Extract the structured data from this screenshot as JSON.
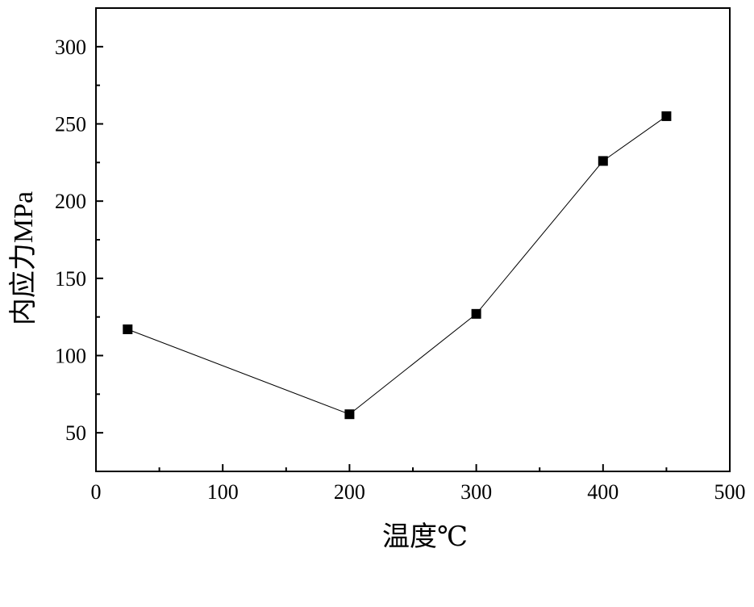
{
  "chart_data": {
    "type": "line",
    "title": "",
    "xlabel": "温度℃",
    "ylabel": "内应力MPa",
    "xlim": [
      0,
      500
    ],
    "ylim": [
      25,
      325
    ],
    "x_ticks": [
      0,
      100,
      200,
      300,
      400,
      500
    ],
    "y_ticks": [
      50,
      100,
      150,
      200,
      250,
      300
    ],
    "grid": false,
    "legend": "none",
    "series": [
      {
        "x": [
          25,
          200,
          300,
          400,
          450
        ],
        "y": [
          117,
          62,
          127,
          226,
          255
        ],
        "marker": "square",
        "color": "#000000"
      }
    ]
  }
}
